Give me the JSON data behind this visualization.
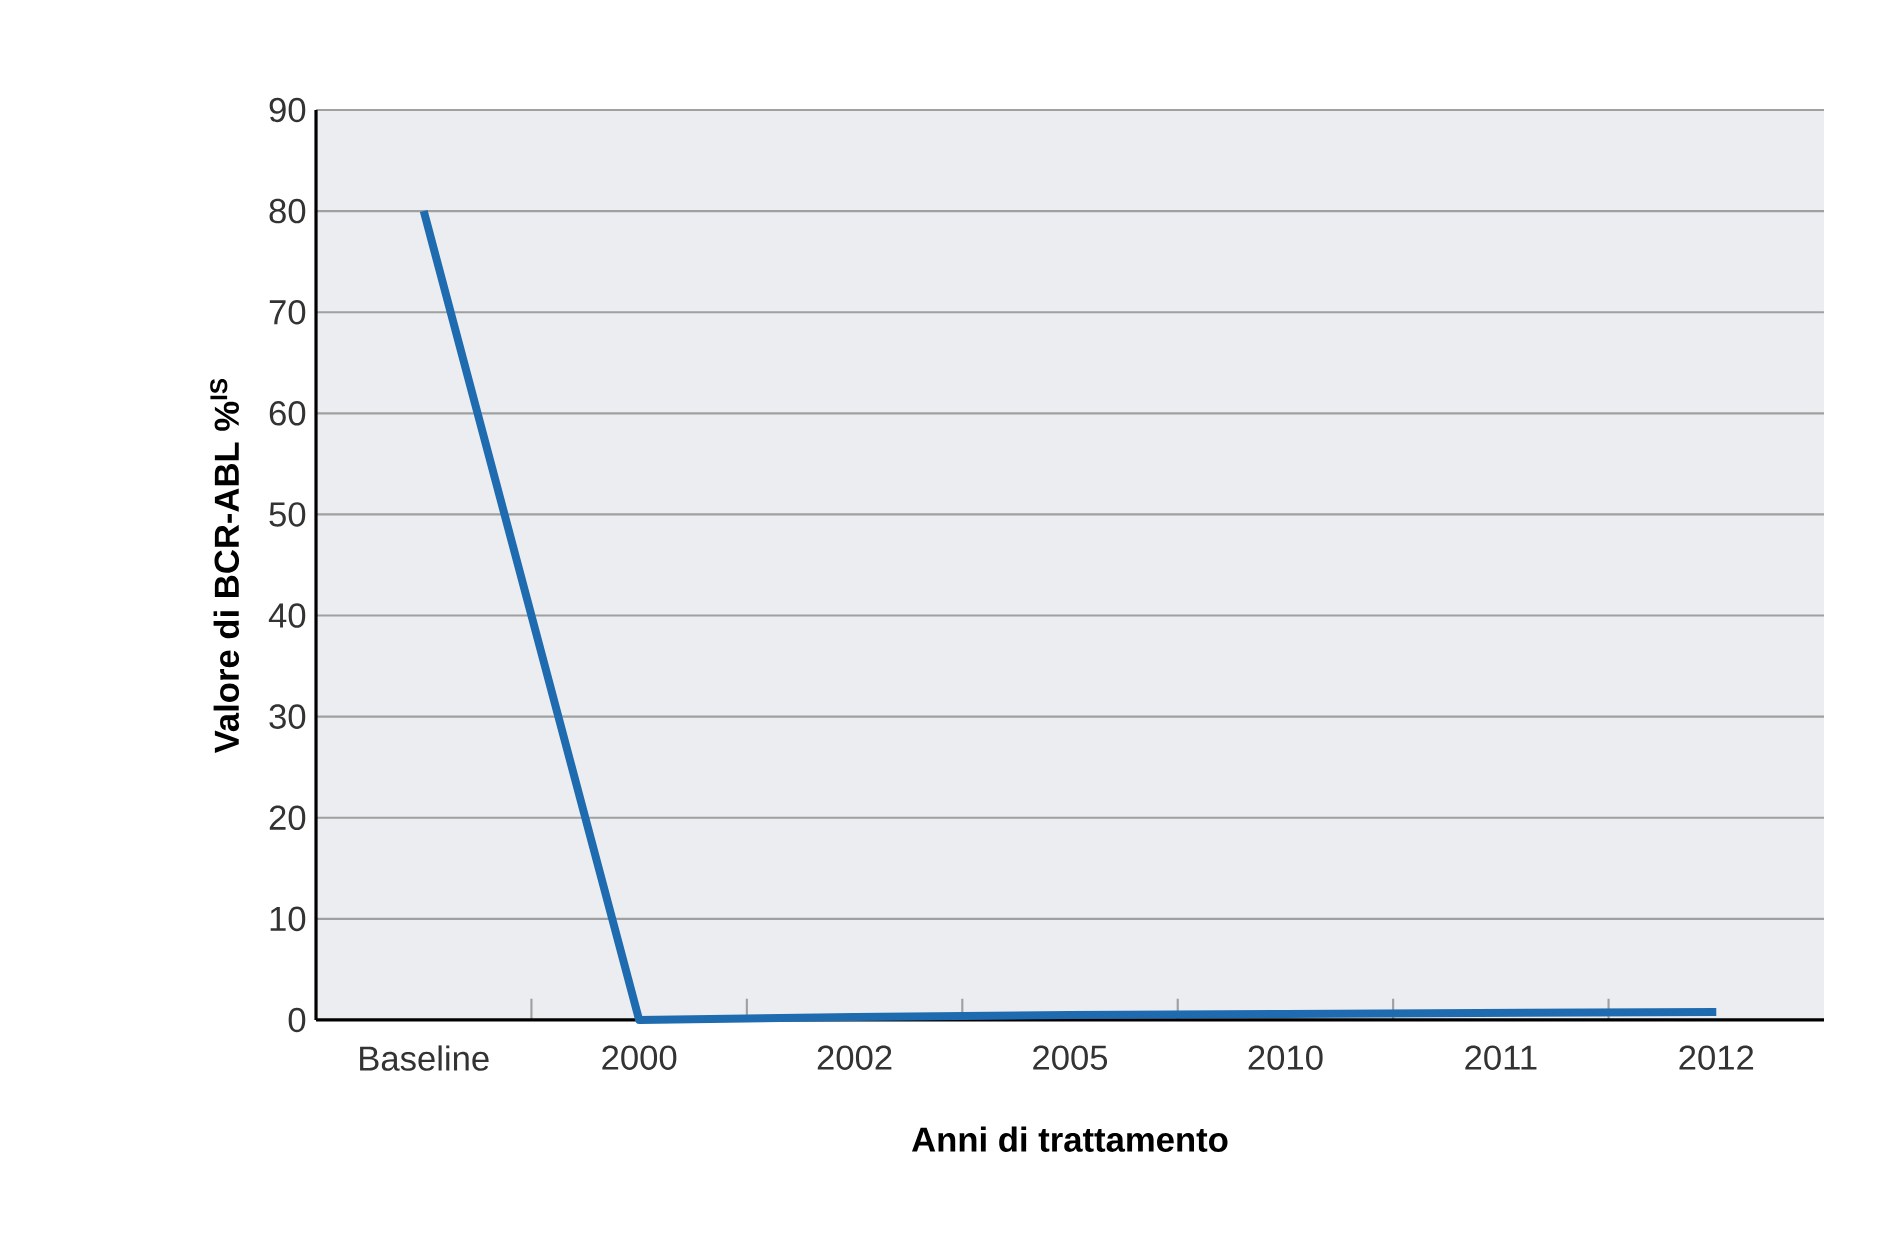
{
  "chart_data": {
    "type": "line",
    "xlabel": "Anni di trattamento",
    "ylabel": "Valore di BCR-ABL %$^{IS}$",
    "categories": [
      "Baseline",
      "2000",
      "2002",
      "2005",
      "2010",
      "2011",
      "2012"
    ],
    "series": [
      {
        "color": "#1f6bb0",
        "values": [
          80,
          0,
          0.3,
          0.5,
          0.6,
          0.7,
          0.8
        ]
      }
    ],
    "ylim": [
      0,
      90
    ],
    "yticks": [
      0,
      10,
      20,
      30,
      40,
      50,
      60,
      70,
      80,
      90
    ],
    "grid": "y",
    "marker": "none",
    "line_style": "solid"
  }
}
